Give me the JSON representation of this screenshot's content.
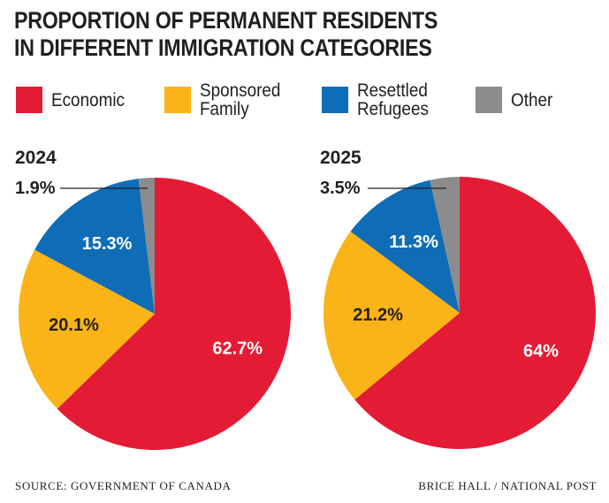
{
  "title_line1": "PROPORTION OF PERMANENT RESIDENTS",
  "title_line2": "IN DIFFERENT IMMIGRATION CATEGORIES",
  "legend": [
    {
      "label": "Economic",
      "color": "#e31b34"
    },
    {
      "label": "Sponsored\nFamily",
      "color": "#fbb417"
    },
    {
      "label": "Resettled\nRefugees",
      "color": "#0f6db7"
    },
    {
      "label": "Other",
      "color": "#8c8c8c"
    }
  ],
  "chart_data": [
    {
      "type": "pie",
      "title": "2024",
      "categories": [
        "Economic",
        "Sponsored Family",
        "Resettled Refugees",
        "Other"
      ],
      "values": [
        62.7,
        20.1,
        15.3,
        1.9
      ],
      "labels": [
        "62.7%",
        "20.1%",
        "15.3%",
        "1.9%"
      ],
      "colors": [
        "#e31b34",
        "#fbb417",
        "#0f6db7",
        "#8c8c8c"
      ]
    },
    {
      "type": "pie",
      "title": "2025",
      "categories": [
        "Economic",
        "Sponsored Family",
        "Resettled Refugees",
        "Other"
      ],
      "values": [
        64,
        21.2,
        11.3,
        3.5
      ],
      "labels": [
        "64%",
        "21.2%",
        "11.3%",
        "3.5%"
      ],
      "colors": [
        "#e31b34",
        "#fbb417",
        "#0f6db7",
        "#8c8c8c"
      ]
    }
  ],
  "source": "SOURCE: GOVERNMENT OF CANADA",
  "credit": "BRICE HALL  / NATIONAL POST"
}
